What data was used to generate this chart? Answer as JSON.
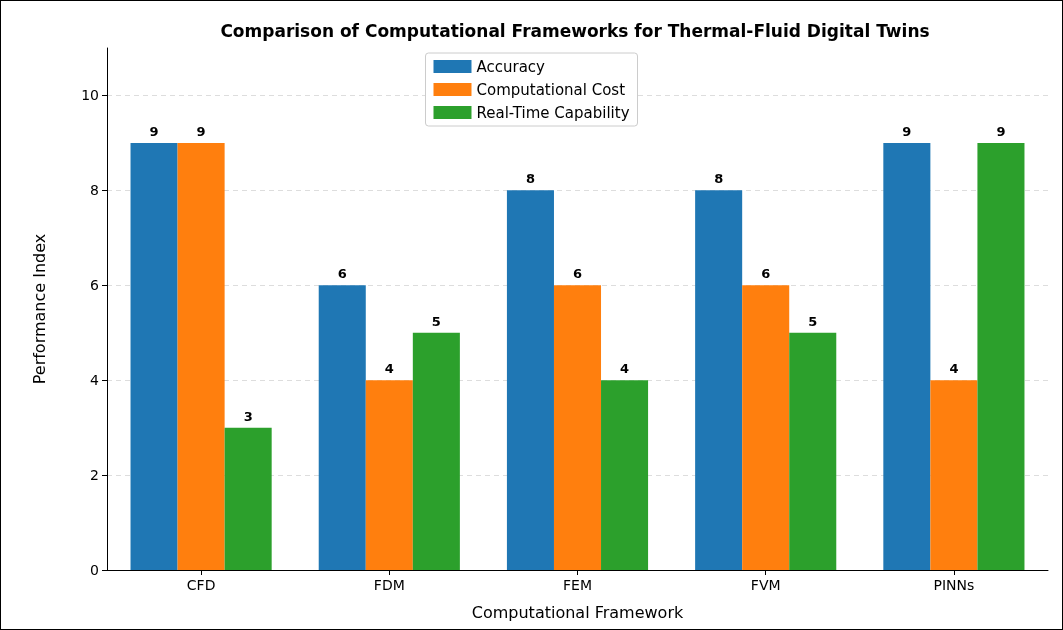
{
  "chart_data": {
    "type": "bar",
    "title": "Comparison of Computational Frameworks for Thermal-Fluid Digital Twins",
    "xlabel": "Computational Framework",
    "ylabel": "Performance Index",
    "categories": [
      "CFD",
      "FDM",
      "FEM",
      "FVM",
      "PINNs"
    ],
    "series": [
      {
        "name": "Accuracy",
        "color": "#1f77b4",
        "values": [
          9,
          6,
          8,
          8,
          9
        ]
      },
      {
        "name": "Computational Cost",
        "color": "#ff7f0e",
        "values": [
          9,
          4,
          6,
          6,
          4
        ]
      },
      {
        "name": "Real-Time Capability",
        "color": "#2ca02c",
        "values": [
          3,
          5,
          4,
          5,
          9
        ]
      }
    ],
    "ylim": [
      0,
      11
    ],
    "yticks": [
      0,
      2,
      4,
      6,
      8,
      10
    ],
    "grid": "y",
    "legend": "top",
    "data_labels": true
  }
}
